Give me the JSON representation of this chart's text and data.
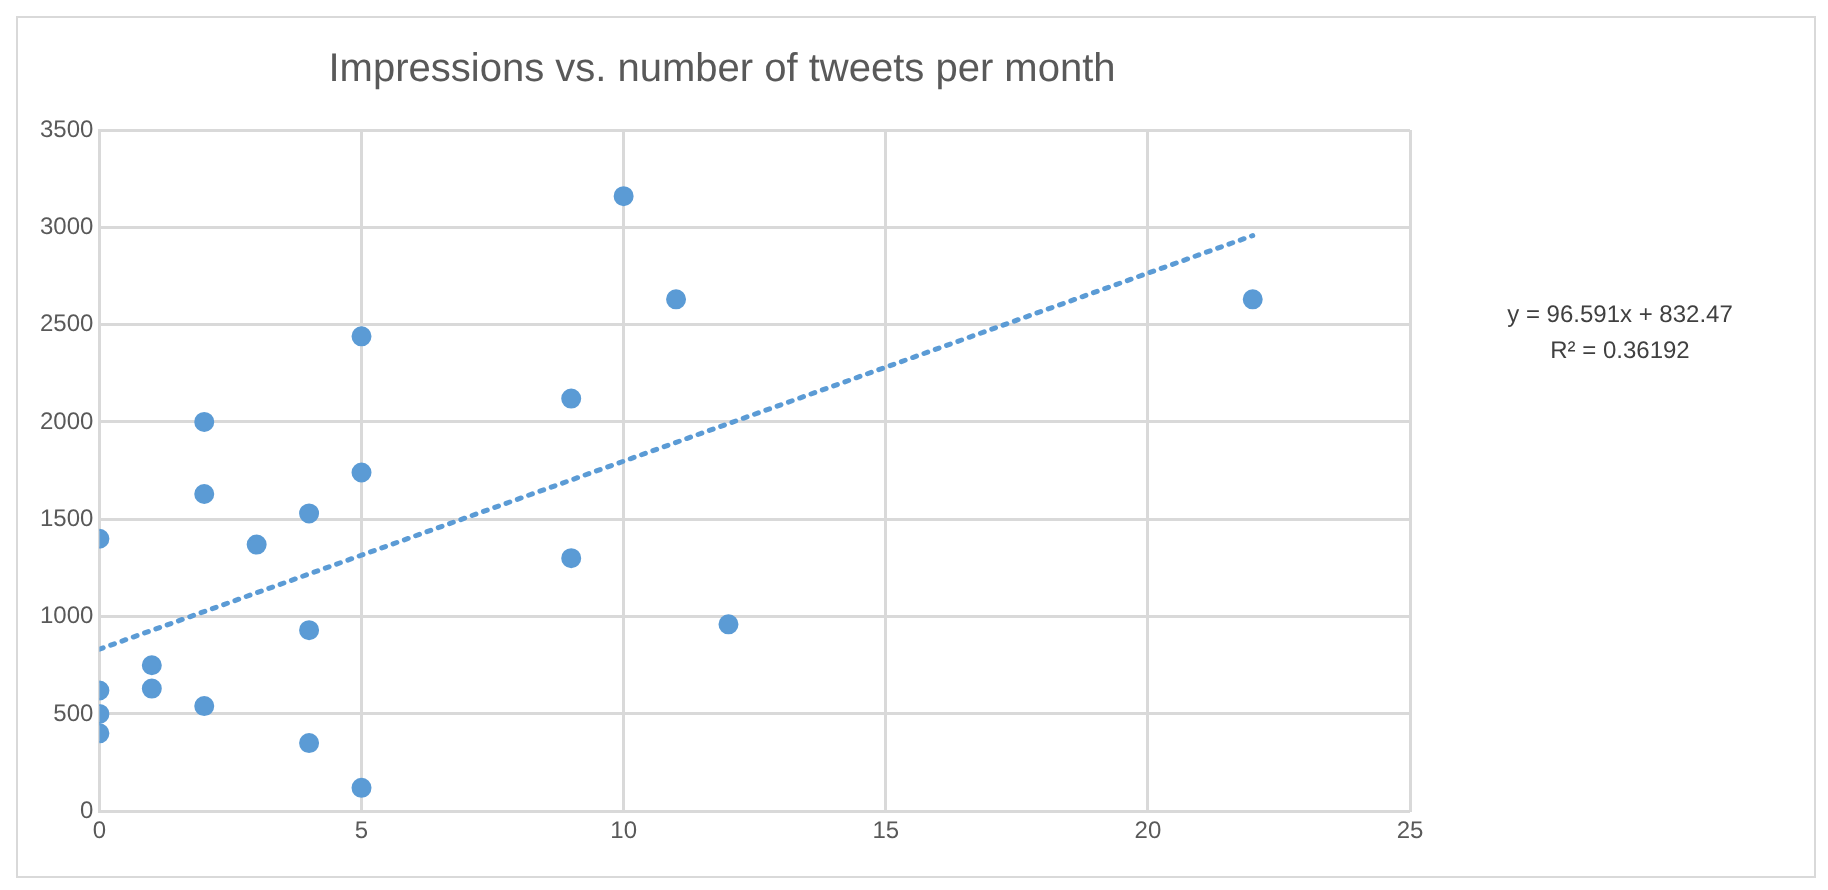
{
  "chart_data": {
    "type": "scatter",
    "title": "Impressions vs. number of tweets per month",
    "xlim": [
      0,
      25
    ],
    "xticks": [
      0,
      5,
      10,
      15,
      20,
      25
    ],
    "ylim": [
      0,
      3500
    ],
    "yticks": [
      0,
      500,
      1000,
      1500,
      2000,
      2500,
      3000,
      3500
    ],
    "grid": true,
    "legend": false,
    "marker": "circle",
    "series": [
      {
        "color": "#5b9bd5",
        "x": [
          0,
          0,
          0,
          0,
          1,
          1,
          2,
          2,
          2,
          3,
          4,
          4,
          4,
          5,
          5,
          5,
          9,
          9,
          10,
          11,
          12,
          22
        ],
        "values": [
          1400,
          620,
          500,
          400,
          750,
          630,
          2000,
          1630,
          540,
          1370,
          1530,
          930,
          350,
          2440,
          1740,
          120,
          2120,
          1300,
          3160,
          2630,
          960,
          2630
        ]
      },
      {
        "type": "line",
        "color": "#5b9bd5",
        "line_style": "dotted",
        "marker": "none",
        "x": [
          0,
          22
        ],
        "values": [
          832.47,
          2957.47
        ]
      }
    ],
    "annotations": [
      "y = 96.591x + 832.47\nR² = 0.36192"
    ]
  }
}
